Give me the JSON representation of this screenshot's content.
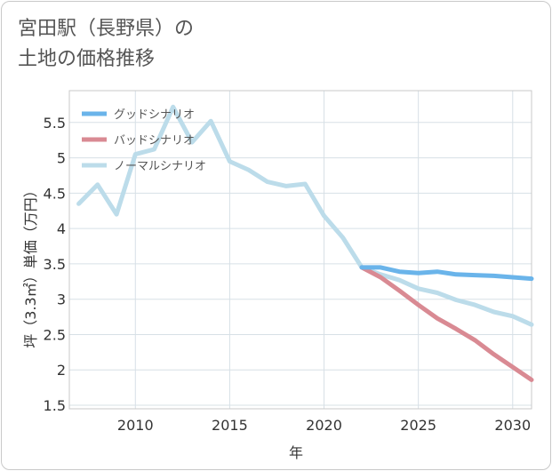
{
  "title_lines": [
    "宮田駅（長野県）の",
    "土地の価格推移"
  ],
  "chart_data": {
    "type": "line",
    "title": "宮田駅（長野県）の土地の価格推移",
    "xlabel": "年",
    "ylabel": "坪（3.3㎡）単価（万円）",
    "xlim": [
      2006.5,
      2031
    ],
    "ylim": [
      1.45,
      5.95
    ],
    "x_ticks": [
      2010,
      2015,
      2020,
      2025,
      2030
    ],
    "y_ticks": [
      1.5,
      2,
      2.5,
      3,
      3.5,
      4,
      4.5,
      5,
      5.5
    ],
    "grid": true,
    "legend_position": "top-left",
    "series": [
      {
        "name": "グッドシナリオ",
        "color": "#6ab4ea",
        "points": [
          [
            2022,
            3.45
          ],
          [
            2023,
            3.45
          ],
          [
            2024,
            3.39
          ],
          [
            2025,
            3.37
          ],
          [
            2026,
            3.39
          ],
          [
            2027,
            3.35
          ],
          [
            2028,
            3.34
          ],
          [
            2029,
            3.33
          ],
          [
            2030,
            3.31
          ],
          [
            2031,
            3.29
          ]
        ]
      },
      {
        "name": "バッドシナリオ",
        "color": "#d98a93",
        "points": [
          [
            2022,
            3.45
          ],
          [
            2023,
            3.31
          ],
          [
            2024,
            3.12
          ],
          [
            2025,
            2.92
          ],
          [
            2026,
            2.73
          ],
          [
            2027,
            2.58
          ],
          [
            2028,
            2.42
          ],
          [
            2029,
            2.22
          ],
          [
            2030,
            2.04
          ],
          [
            2031,
            1.86
          ]
        ]
      },
      {
        "name": "ノーマルシナリオ",
        "color": "#bcdcea",
        "points": [
          [
            2007,
            4.35
          ],
          [
            2008,
            4.62
          ],
          [
            2009,
            4.2
          ],
          [
            2010,
            5.05
          ],
          [
            2011,
            5.12
          ],
          [
            2012,
            5.72
          ],
          [
            2013,
            5.22
          ],
          [
            2014,
            5.52
          ],
          [
            2015,
            4.95
          ],
          [
            2016,
            4.83
          ],
          [
            2017,
            4.66
          ],
          [
            2018,
            4.6
          ],
          [
            2019,
            4.63
          ],
          [
            2020,
            4.18
          ],
          [
            2021,
            3.87
          ],
          [
            2022,
            3.45
          ],
          [
            2023,
            3.35
          ],
          [
            2024,
            3.27
          ],
          [
            2025,
            3.15
          ],
          [
            2026,
            3.09
          ],
          [
            2027,
            2.99
          ],
          [
            2028,
            2.92
          ],
          [
            2029,
            2.82
          ],
          [
            2030,
            2.76
          ],
          [
            2031,
            2.64
          ]
        ]
      }
    ]
  }
}
